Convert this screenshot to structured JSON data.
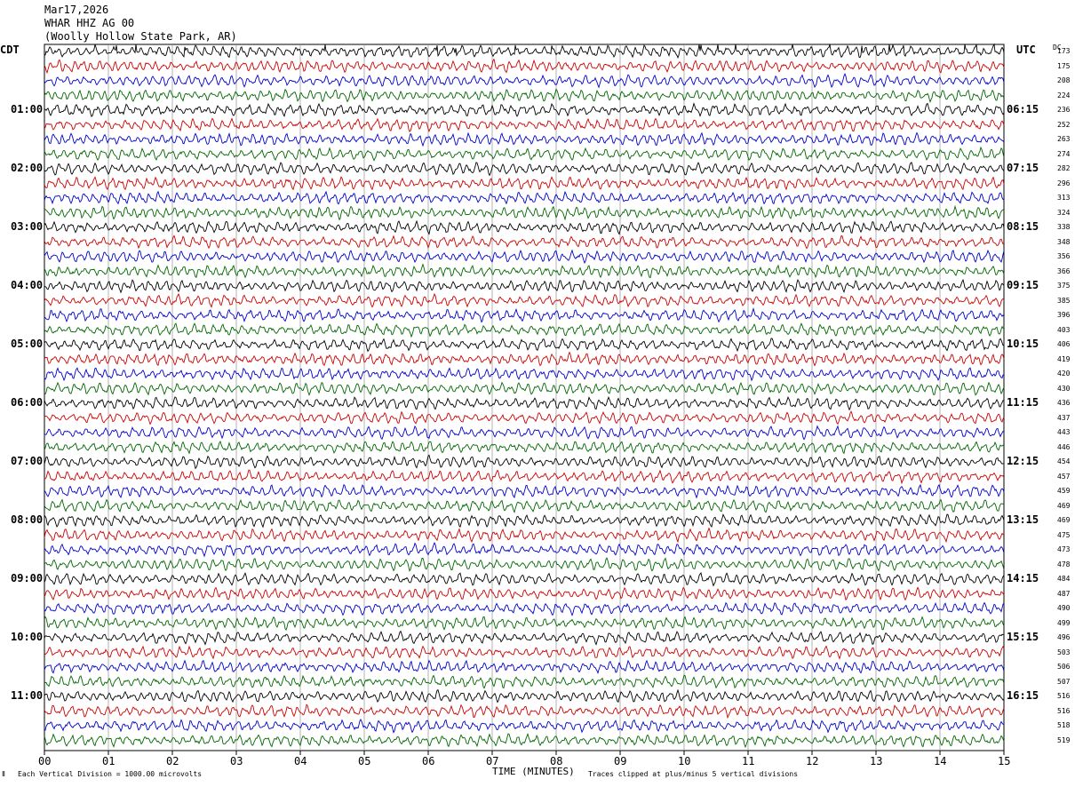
{
  "header": {
    "date": "Mar17,2026",
    "station": "WHAR HHZ AG 00",
    "location": "(Woolly Hollow State Park, AR)"
  },
  "axes": {
    "left_zone": "CDT",
    "right_zone": "UTC",
    "dc_label": "DC",
    "xlabel": "TIME (MINUTES)",
    "x_ticks": [
      "00",
      "01",
      "02",
      "03",
      "04",
      "05",
      "06",
      "07",
      "08",
      "09",
      "10",
      "11",
      "12",
      "13",
      "14",
      "15"
    ]
  },
  "footer": {
    "scale_note": "Each Vertical Division = 1000.00 microvolts",
    "clip_note": "Traces clipped at plus/minus 5 vertical divisions"
  },
  "colors": {
    "trace_cycle": [
      "#000000",
      "#cc0000",
      "#0000cc",
      "#006600"
    ],
    "grid": "#808080"
  },
  "chart_data": {
    "type": "line",
    "title": "",
    "x_range_minutes": [
      0,
      15
    ],
    "trace_count": 48,
    "minutes_per_trace": 15,
    "left_time_labels": [
      {
        "trace": 4,
        "label": "01:00"
      },
      {
        "trace": 8,
        "label": "02:00"
      },
      {
        "trace": 12,
        "label": "03:00"
      },
      {
        "trace": 16,
        "label": "04:00"
      },
      {
        "trace": 20,
        "label": "05:00"
      },
      {
        "trace": 24,
        "label": "06:00"
      },
      {
        "trace": 28,
        "label": "07:00"
      },
      {
        "trace": 32,
        "label": "08:00"
      },
      {
        "trace": 36,
        "label": "09:00"
      },
      {
        "trace": 40,
        "label": "10:00"
      },
      {
        "trace": 44,
        "label": "11:00"
      }
    ],
    "right_time_labels": [
      {
        "trace": 4,
        "label": "06:15"
      },
      {
        "trace": 8,
        "label": "07:15"
      },
      {
        "trace": 12,
        "label": "08:15"
      },
      {
        "trace": 16,
        "label": "09:15"
      },
      {
        "trace": 20,
        "label": "10:15"
      },
      {
        "trace": 24,
        "label": "11:15"
      },
      {
        "trace": 28,
        "label": "12:15"
      },
      {
        "trace": 32,
        "label": "13:15"
      },
      {
        "trace": 36,
        "label": "14:15"
      },
      {
        "trace": 40,
        "label": "15:15"
      },
      {
        "trace": 44,
        "label": "16:15"
      }
    ],
    "dc_offsets": [
      173,
      175,
      208,
      224,
      236,
      252,
      263,
      274,
      282,
      296,
      313,
      324,
      338,
      348,
      356,
      366,
      375,
      385,
      396,
      403,
      406,
      419,
      420,
      430,
      436,
      437,
      443,
      446,
      454,
      457,
      459,
      469,
      469,
      475,
      473,
      478,
      484,
      487,
      490,
      499,
      496,
      503,
      506,
      507,
      516,
      516,
      518,
      519
    ]
  }
}
